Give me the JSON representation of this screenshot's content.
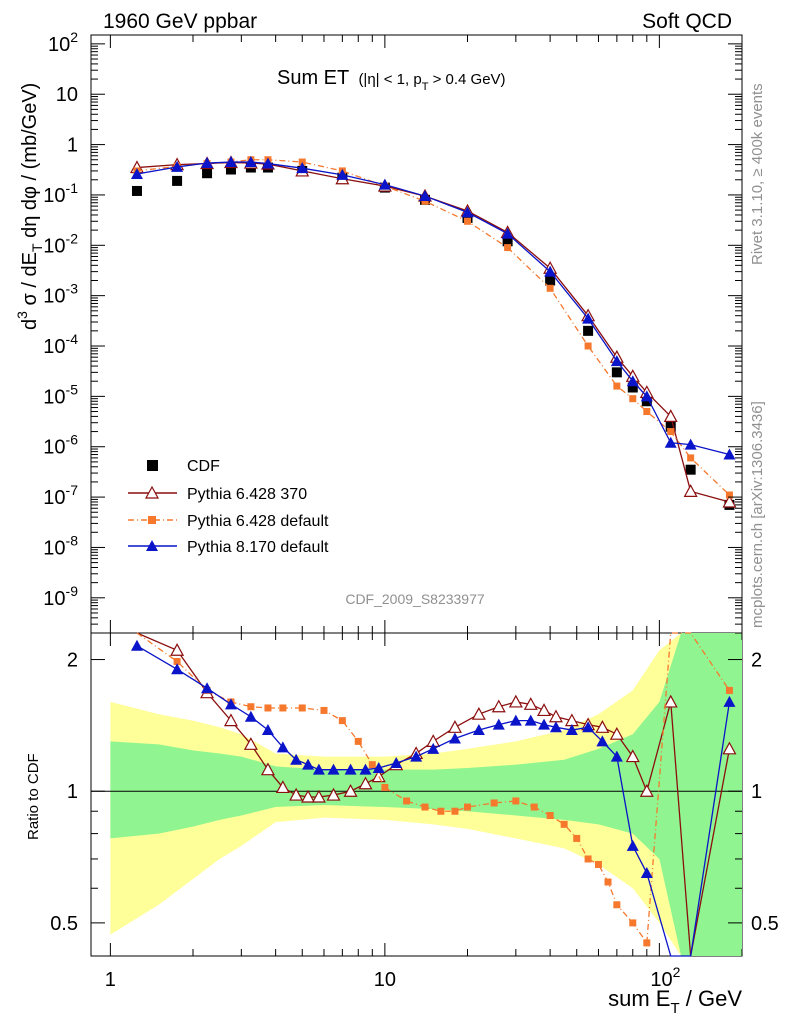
{
  "header": {
    "energy_label": "1960 GeV ppbar",
    "process_label": "Soft QCD"
  },
  "side": {
    "rivet": "Rivet 3.1.10, ≥ 400k events",
    "site": "mcplots.cern.ch [arXiv:1306.3436]"
  },
  "panel_title": {
    "main": "Sum ET",
    "cut": "(|η| < 1, p",
    "cut_sub": "T",
    "cut_end": " > 0.4 GeV)"
  },
  "analysis_id": "CDF_2009_S8233977",
  "ylabel_main": {
    "pre": "d",
    "sup3": "3",
    "mid": " σ / dE",
    "subT": "T",
    "post": " dη dφ / (mb/GeV)"
  },
  "ylabel_ratio": "Ratio to CDF",
  "xlabel": {
    "pre": "sum E",
    "sub": "T",
    "post": " / GeV"
  },
  "colors": {
    "cdf": "#000000",
    "py6_370": "#8b0f0f",
    "py6_def": "#f5782d",
    "py8_def": "#0a14c8",
    "band_inner": "#90f590",
    "band_outer": "#ffff99"
  },
  "chart_data": [
    {
      "type": "scatter",
      "panel": "main",
      "xscale": "log",
      "yscale": "log",
      "xlim": [
        0.85,
        200
      ],
      "ylim": [
        2e-10,
        150
      ],
      "y_ticklabels": [
        "10^2",
        "10",
        "1",
        "10^-1",
        "10^-2",
        "10^-3",
        "10^-4",
        "10^-5",
        "10^-6",
        "10^-7",
        "10^-8",
        "10^-9"
      ],
      "legend_placement": "bottom-left",
      "legend": [
        "CDF",
        "Pythia 6.428 370",
        "Pythia 6.428 default",
        "Pythia 8.170 default"
      ],
      "series": [
        {
          "name": "CDF",
          "marker": "square",
          "x": [
            1.25,
            1.75,
            2.25,
            2.75,
            3.25,
            3.75,
            5,
            7,
            10,
            14,
            20,
            28,
            40,
            55,
            70,
            80,
            90,
            110,
            130,
            180
          ],
          "y": [
            0.12,
            0.19,
            0.27,
            0.32,
            0.35,
            0.35,
            0.3,
            0.22,
            0.14,
            0.08,
            0.035,
            0.012,
            0.002,
            0.0002,
            3e-05,
            1.5e-05,
            8e-06,
            2.5e-06,
            3.5e-07,
            7e-08
          ]
        },
        {
          "name": "Pythia 6.428 370",
          "marker": "open-triangle",
          "x": [
            1.25,
            1.75,
            2.25,
            2.75,
            3.25,
            3.75,
            5,
            7,
            10,
            14,
            20,
            28,
            40,
            55,
            70,
            80,
            90,
            110,
            130,
            180
          ],
          "y": [
            0.35,
            0.4,
            0.42,
            0.44,
            0.43,
            0.41,
            0.3,
            0.21,
            0.15,
            0.095,
            0.048,
            0.018,
            0.0035,
            0.0004,
            6e-05,
            2.5e-05,
            1.2e-05,
            4e-06,
            1.3e-07,
            8e-08
          ]
        },
        {
          "name": "Pythia 6.428 default",
          "marker": "small-square",
          "x": [
            1.25,
            1.75,
            2.25,
            2.75,
            3.25,
            3.75,
            5,
            7,
            10,
            14,
            20,
            28,
            40,
            55,
            70,
            80,
            90,
            110,
            130,
            180
          ],
          "y": [
            0.3,
            0.37,
            0.42,
            0.45,
            0.5,
            0.5,
            0.45,
            0.3,
            0.15,
            0.075,
            0.03,
            0.009,
            0.0014,
            0.0001,
            1.6e-05,
            9e-06,
            5e-06,
            2e-06,
            6e-07,
            1.1e-07
          ]
        },
        {
          "name": "Pythia 8.170 default",
          "marker": "triangle",
          "x": [
            1.25,
            1.75,
            2.25,
            2.75,
            3.25,
            3.75,
            5,
            7,
            10,
            14,
            20,
            28,
            40,
            55,
            70,
            80,
            90,
            110,
            130,
            180
          ],
          "y": [
            0.26,
            0.36,
            0.43,
            0.45,
            0.45,
            0.42,
            0.34,
            0.25,
            0.16,
            0.095,
            0.045,
            0.017,
            0.003,
            0.00035,
            5e-05,
            2e-05,
            1e-05,
            1.2e-06,
            1.1e-06,
            7e-07
          ]
        }
      ]
    },
    {
      "type": "line",
      "panel": "ratio",
      "xscale": "log",
      "yscale": "log",
      "xlim": [
        0.85,
        200
      ],
      "ylim": [
        0.42,
        2.3
      ],
      "xlabel": "sum E_T / GeV",
      "ylabel": "Ratio to CDF",
      "x_ticklabels": [
        "1",
        "10",
        "10^2"
      ],
      "y_ticklabels": [
        "0.5",
        "1",
        "2"
      ],
      "reference_line": 1,
      "band": {
        "x": [
          1,
          1.5,
          2,
          2.5,
          3,
          4,
          6,
          10,
          15,
          20,
          30,
          45,
          60,
          80,
          100,
          120,
          200
        ],
        "inner_low": [
          0.78,
          0.8,
          0.83,
          0.86,
          0.88,
          0.92,
          0.93,
          0.92,
          0.91,
          0.9,
          0.88,
          0.86,
          0.84,
          0.8,
          0.7,
          0.42,
          0.42
        ],
        "inner_high": [
          1.3,
          1.28,
          1.24,
          1.22,
          1.2,
          1.14,
          1.12,
          1.12,
          1.12,
          1.13,
          1.15,
          1.18,
          1.25,
          1.35,
          1.6,
          2.3,
          2.3
        ],
        "outer_low": [
          0.47,
          0.55,
          0.63,
          0.7,
          0.75,
          0.85,
          0.87,
          0.86,
          0.84,
          0.82,
          0.78,
          0.74,
          0.68,
          0.6,
          0.5,
          0.42,
          0.42
        ],
        "outer_high": [
          1.6,
          1.5,
          1.45,
          1.4,
          1.35,
          1.22,
          1.2,
          1.2,
          1.22,
          1.25,
          1.3,
          1.38,
          1.5,
          1.7,
          2.1,
          2.3,
          2.3
        ]
      },
      "series": [
        {
          "name": "Pythia 6.428 370",
          "x": [
            1.25,
            1.75,
            2.25,
            2.75,
            3.25,
            3.75,
            4.25,
            4.75,
            5.25,
            5.75,
            6.5,
            7.5,
            8.5,
            9.5,
            11,
            13,
            15,
            18,
            22,
            26,
            30,
            34,
            38,
            42,
            48,
            55,
            62,
            70,
            80,
            90,
            110,
            130,
            180
          ],
          "y": [
            2.6,
            2.1,
            1.68,
            1.45,
            1.28,
            1.12,
            1.02,
            0.98,
            0.97,
            0.97,
            0.98,
            1.0,
            1.04,
            1.08,
            1.15,
            1.22,
            1.3,
            1.4,
            1.5,
            1.56,
            1.6,
            1.58,
            1.53,
            1.48,
            1.45,
            1.42,
            1.4,
            1.35,
            1.2,
            1.0,
            1.6,
            0.35,
            1.25
          ]
        },
        {
          "name": "Pythia 6.428 default",
          "x": [
            1.25,
            1.75,
            2.25,
            2.75,
            3.25,
            3.75,
            4.25,
            5,
            6,
            7,
            8,
            9,
            10,
            12,
            14,
            16,
            18,
            20,
            25,
            30,
            35,
            40,
            45,
            50,
            55,
            60,
            65,
            70,
            80,
            90,
            110,
            130,
            180
          ],
          "y": [
            2.4,
            1.98,
            1.7,
            1.6,
            1.56,
            1.55,
            1.55,
            1.55,
            1.53,
            1.45,
            1.3,
            1.15,
            1.02,
            0.95,
            0.92,
            0.9,
            0.9,
            0.92,
            0.94,
            0.95,
            0.92,
            0.88,
            0.84,
            0.78,
            0.7,
            0.68,
            0.62,
            0.55,
            0.5,
            0.45,
            2.3,
            2.3,
            1.7
          ]
        },
        {
          "name": "Pythia 8.170 default",
          "x": [
            1.25,
            1.75,
            2.25,
            2.75,
            3.25,
            3.75,
            4.25,
            4.75,
            5.25,
            5.75,
            6.5,
            7.5,
            8.5,
            9.5,
            11,
            13,
            15,
            18,
            22,
            26,
            30,
            34,
            38,
            42,
            48,
            55,
            62,
            70,
            80,
            90,
            110,
            130,
            180
          ],
          "y": [
            2.15,
            1.9,
            1.72,
            1.58,
            1.48,
            1.38,
            1.26,
            1.18,
            1.15,
            1.12,
            1.12,
            1.12,
            1.12,
            1.13,
            1.16,
            1.2,
            1.25,
            1.32,
            1.38,
            1.42,
            1.45,
            1.45,
            1.42,
            1.4,
            1.38,
            1.4,
            1.3,
            1.2,
            0.75,
            0.65,
            0.42,
            0.42,
            1.6
          ]
        }
      ]
    }
  ]
}
